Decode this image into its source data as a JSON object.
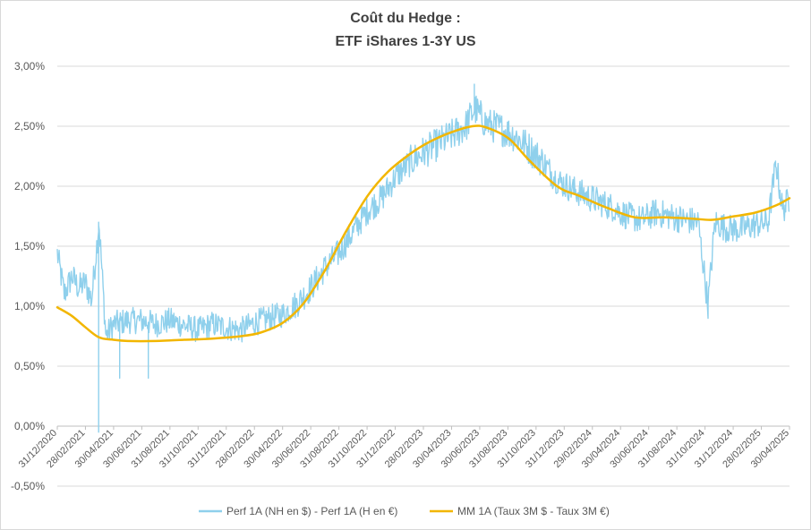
{
  "chart_data": {
    "type": "line",
    "title": "Coût du Hedge :",
    "subtitle": "ETF iShares 1-3Y US",
    "xlabel": "",
    "ylabel": "",
    "ylim": [
      -0.5,
      3.0
    ],
    "y_tick_labels": [
      "-0,50%",
      "0,00%",
      "0,50%",
      "1,00%",
      "1,50%",
      "2,00%",
      "2,50%",
      "3,00%"
    ],
    "x_tick_labels": [
      "31/12/2020",
      "28/02/2021",
      "30/04/2021",
      "30/06/2021",
      "31/08/2021",
      "31/10/2021",
      "31/12/2021",
      "28/02/2022",
      "30/04/2022",
      "30/06/2022",
      "31/08/2022",
      "31/10/2022",
      "31/12/2022",
      "28/02/2023",
      "30/04/2023",
      "30/06/2023",
      "31/08/2023",
      "31/10/2023",
      "31/12/2023",
      "29/02/2024",
      "30/04/2024",
      "30/06/2024",
      "31/08/2024",
      "31/10/2024",
      "31/12/2024",
      "28/02/2025",
      "30/04/2025"
    ],
    "grid": "horizontal",
    "legend_position": "bottom",
    "series": [
      {
        "name": "Perf 1A (NH en $) - Perf 1A (H en €)",
        "color": "#8fd0ec",
        "x": [
          "2020-12-31",
          "2021-01-15",
          "2021-02-01",
          "2021-02-15",
          "2021-03-01",
          "2021-03-15",
          "2021-03-31",
          "2021-04-15",
          "2021-05-01",
          "2021-06-01",
          "2021-07-01",
          "2021-08-01",
          "2021-09-01",
          "2021-10-01",
          "2021-11-01",
          "2021-12-01",
          "2022-01-01",
          "2022-02-01",
          "2022-03-01",
          "2022-04-01",
          "2022-05-01",
          "2022-06-01",
          "2022-07-01",
          "2022-08-01",
          "2022-09-01",
          "2022-10-01",
          "2022-11-01",
          "2022-12-01",
          "2023-01-01",
          "2023-02-01",
          "2023-03-01",
          "2023-04-01",
          "2023-05-01",
          "2023-06-01",
          "2023-06-20",
          "2023-07-15",
          "2023-08-15",
          "2023-09-15",
          "2023-10-15",
          "2023-11-15",
          "2023-12-15",
          "2024-01-15",
          "2024-02-15",
          "2024-03-15",
          "2024-04-15",
          "2024-05-15",
          "2024-06-15",
          "2024-07-15",
          "2024-08-15",
          "2024-09-15",
          "2024-10-15",
          "2024-11-05",
          "2024-11-20",
          "2024-12-15",
          "2025-01-15",
          "2025-02-15",
          "2025-03-15",
          "2025-04-01",
          "2025-04-15",
          "2025-04-30"
        ],
        "values": [
          1.44,
          1.1,
          1.25,
          1.15,
          1.2,
          1.05,
          1.7,
          0.75,
          0.85,
          0.88,
          0.88,
          0.85,
          0.88,
          0.84,
          0.8,
          0.85,
          0.82,
          0.8,
          0.86,
          0.9,
          0.93,
          1.02,
          1.15,
          1.32,
          1.45,
          1.62,
          1.8,
          1.9,
          2.08,
          2.2,
          2.28,
          2.35,
          2.42,
          2.5,
          2.65,
          2.52,
          2.48,
          2.42,
          2.32,
          2.2,
          2.05,
          1.98,
          1.92,
          1.87,
          1.82,
          1.75,
          1.72,
          1.78,
          1.75,
          1.72,
          1.7,
          1.01,
          1.7,
          1.65,
          1.64,
          1.68,
          1.7,
          2.2,
          1.8,
          1.9
        ],
        "extremes": [
          {
            "x": "2021-03-31",
            "value": -0.05
          },
          {
            "x": "2021-03-31",
            "value": 1.7
          },
          {
            "x": "2021-05-15",
            "value": 0.4
          },
          {
            "x": "2021-07-15",
            "value": 0.4
          },
          {
            "x": "2023-06-20",
            "value": 2.85
          },
          {
            "x": "2024-11-05",
            "value": 1.0
          },
          {
            "x": "2025-03-31",
            "value": 2.21
          }
        ]
      },
      {
        "name": "MM 1A (Taux 3M $ - Taux 3M €)",
        "color": "#f2b600",
        "x": [
          "2020-12-31",
          "2021-01-31",
          "2021-02-28",
          "2021-03-31",
          "2021-05-01",
          "2021-06-01",
          "2021-08-01",
          "2021-10-01",
          "2021-12-01",
          "2022-02-01",
          "2022-03-15",
          "2022-05-01",
          "2022-06-15",
          "2022-08-01",
          "2022-09-15",
          "2022-11-01",
          "2022-12-15",
          "2023-02-01",
          "2023-03-15",
          "2023-05-01",
          "2023-06-15",
          "2023-07-15",
          "2023-09-01",
          "2023-10-15",
          "2023-12-15",
          "2024-02-01",
          "2024-04-01",
          "2024-06-01",
          "2024-08-01",
          "2024-10-01",
          "2024-11-15",
          "2025-01-01",
          "2025-02-15",
          "2025-04-01",
          "2025-04-30"
        ],
        "values": [
          0.99,
          0.92,
          0.83,
          0.74,
          0.72,
          0.71,
          0.71,
          0.72,
          0.73,
          0.75,
          0.78,
          0.86,
          1.02,
          1.3,
          1.62,
          1.92,
          2.12,
          2.27,
          2.37,
          2.45,
          2.5,
          2.49,
          2.4,
          2.22,
          2.0,
          1.92,
          1.82,
          1.74,
          1.74,
          1.73,
          1.72,
          1.75,
          1.78,
          1.84,
          1.9
        ]
      }
    ]
  }
}
